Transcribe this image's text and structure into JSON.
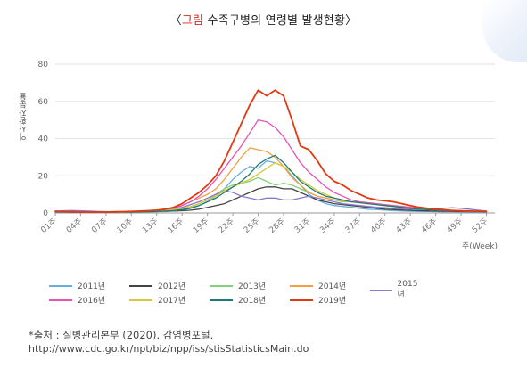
{
  "title": {
    "prefix": "〈",
    "highlight": "그림",
    "text": " 수족구병의 연령별 발생현황〉",
    "highlight_color": "#d8261c"
  },
  "source": {
    "line1": "*출처 : 질병관리본부 (2020). 감염병포털.",
    "line2": "http://www.cdc.go.kr/npt/biz/npp/iss/stisStatisticsMain.do"
  },
  "chart_data": {
    "type": "line",
    "ylabel": "의사환자분율",
    "xlabel": "주(Week)",
    "ylim": [
      0,
      80
    ],
    "yticks": [
      0,
      20,
      40,
      60,
      80
    ],
    "xtick_labels": [
      "01주",
      "04주",
      "07주",
      "10주",
      "13주",
      "16주",
      "19주",
      "22주",
      "25주",
      "28주",
      "31주",
      "34주",
      "37주",
      "40주",
      "43주",
      "46주",
      "49주",
      "52주"
    ],
    "xtick_weeks": [
      1,
      4,
      7,
      10,
      13,
      16,
      19,
      22,
      25,
      28,
      31,
      34,
      37,
      40,
      43,
      46,
      49,
      52
    ],
    "x_weeks": [
      1,
      2,
      3,
      4,
      5,
      6,
      7,
      8,
      9,
      10,
      11,
      12,
      13,
      14,
      15,
      16,
      17,
      18,
      19,
      20,
      21,
      22,
      23,
      24,
      25,
      26,
      27,
      28,
      29,
      30,
      31,
      32,
      33,
      34,
      35,
      36,
      37,
      38,
      39,
      40,
      41,
      42,
      43,
      44,
      45,
      46,
      47,
      48,
      49,
      50,
      51,
      52
    ],
    "grid": "horizontal",
    "legend_position": "bottom",
    "series": [
      {
        "name": "2011년",
        "color": "#6aaede",
        "values": [
          1,
          0.8,
          0.6,
          0.5,
          0.5,
          0.4,
          0.4,
          0.4,
          0.5,
          0.5,
          0.6,
          0.7,
          0.8,
          1,
          1.2,
          1.6,
          2.5,
          4,
          6,
          9,
          13,
          18,
          22,
          25,
          24,
          28,
          27,
          25,
          20,
          15,
          10,
          7,
          5,
          4,
          3.5,
          3,
          2.5,
          2,
          1.8,
          1.5,
          1.2,
          1,
          0.9,
          0.8,
          0.8,
          0.7,
          0.6,
          0.6,
          0.5,
          0.5,
          0.5,
          0.5
        ]
      },
      {
        "name": "2012년",
        "color": "#444444",
        "values": [
          0.8,
          0.6,
          0.5,
          0.5,
          0.4,
          0.4,
          0.4,
          0.4,
          0.4,
          0.5,
          0.5,
          0.6,
          0.7,
          0.8,
          1,
          1.2,
          1.5,
          2,
          3,
          4,
          5,
          7,
          9,
          11,
          13,
          14,
          14,
          13,
          13,
          11,
          9,
          7,
          6,
          5,
          4.5,
          4,
          3.5,
          3,
          2.5,
          2,
          1.8,
          1.6,
          1.4,
          1.2,
          1.1,
          1,
          0.9,
          0.8,
          0.8,
          0.7,
          0.7,
          0.6
        ]
      },
      {
        "name": "2013년",
        "color": "#7fd17a",
        "values": [
          0.6,
          0.5,
          0.5,
          0.4,
          0.4,
          0.4,
          0.4,
          0.4,
          0.4,
          0.5,
          0.5,
          0.6,
          0.7,
          0.9,
          1.2,
          1.8,
          3,
          5,
          7,
          10,
          13,
          15,
          16,
          17,
          19,
          17,
          15,
          16,
          15,
          13,
          11,
          9,
          8,
          7,
          6,
          6,
          6,
          5.5,
          5,
          4,
          3.5,
          3,
          2.5,
          2,
          1.8,
          1.5,
          1.2,
          1,
          1,
          0.8,
          0.8,
          0.7
        ]
      },
      {
        "name": "2014년",
        "color": "#f5a03c",
        "values": [
          0.5,
          0.5,
          0.4,
          0.4,
          0.4,
          0.4,
          0.4,
          0.4,
          0.5,
          0.6,
          0.8,
          1,
          1.3,
          1.8,
          2.5,
          4,
          6,
          8,
          10,
          13,
          18,
          24,
          30,
          35,
          34,
          33,
          30,
          25,
          19,
          15,
          11,
          9,
          8,
          7,
          6.5,
          6,
          5.5,
          5,
          4.5,
          4,
          3.5,
          3,
          2.5,
          2.2,
          2,
          1.8,
          1.6,
          1.4,
          1.2,
          1,
          1,
          0.9
        ]
      },
      {
        "name": "2015년",
        "color": "#8a78cc",
        "values": [
          1,
          1.2,
          1.3,
          1.2,
          1,
          0.8,
          0.7,
          0.6,
          0.6,
          0.6,
          0.7,
          0.8,
          1,
          1.3,
          2,
          3,
          4.5,
          6,
          8,
          10,
          12,
          11,
          9,
          8,
          7,
          8,
          8,
          7,
          7,
          8,
          9,
          8,
          7,
          6,
          5,
          4.5,
          4,
          3.5,
          3,
          2.8,
          2.5,
          2.2,
          2,
          1.8,
          2,
          2.2,
          2.5,
          2.8,
          2.5,
          2,
          1.5,
          1
        ]
      },
      {
        "name": "2016년",
        "color": "#e652b8",
        "values": [
          0.6,
          0.5,
          0.5,
          0.4,
          0.4,
          0.4,
          0.4,
          0.4,
          0.5,
          0.6,
          0.8,
          1,
          1.3,
          1.8,
          2.5,
          4,
          6,
          9,
          13,
          18,
          24,
          30,
          36,
          43,
          50,
          49,
          46,
          41,
          34,
          27,
          22,
          18,
          14,
          11,
          9,
          7,
          6,
          5.5,
          5,
          4.5,
          4,
          3.5,
          3,
          2.5,
          2,
          1.8,
          1.5,
          1.3,
          1.2,
          1,
          0.9,
          0.8
        ]
      },
      {
        "name": "2017년",
        "color": "#d9c83a",
        "values": [
          0.8,
          0.7,
          0.6,
          0.5,
          0.5,
          0.4,
          0.4,
          0.4,
          0.5,
          0.6,
          0.7,
          0.8,
          1,
          1.3,
          1.8,
          2.5,
          3.5,
          5,
          7,
          9,
          12,
          14,
          16,
          18,
          21,
          24,
          27,
          25,
          22,
          18,
          15,
          12,
          10,
          8,
          7,
          6,
          5.5,
          5,
          4.5,
          4,
          3.5,
          3,
          2.5,
          2,
          1.8,
          1.6,
          1.4,
          1.2,
          1.1,
          1,
          0.9,
          0.8
        ]
      },
      {
        "name": "2018년",
        "color": "#1e7a7a",
        "values": [
          0.5,
          0.5,
          0.4,
          0.4,
          0.4,
          0.4,
          0.4,
          0.4,
          0.5,
          0.5,
          0.6,
          0.7,
          0.8,
          1,
          1.3,
          1.8,
          2.5,
          4,
          6,
          8,
          11,
          14,
          17,
          21,
          26,
          29,
          31,
          27,
          22,
          17,
          14,
          11,
          9,
          8,
          7,
          6,
          5.5,
          5,
          4.5,
          4,
          3.5,
          3,
          2.5,
          2,
          1.8,
          1.5,
          1.3,
          1.1,
          1,
          0.9,
          0.8,
          0.7
        ]
      },
      {
        "name": "2019년",
        "color": "#e03a10",
        "values": [
          0.8,
          0.7,
          0.6,
          0.5,
          0.5,
          0.5,
          0.5,
          0.6,
          0.7,
          0.8,
          1,
          1.2,
          1.5,
          2,
          3,
          5,
          8,
          11,
          15,
          20,
          28,
          38,
          48,
          58,
          66,
          63,
          66,
          63,
          50,
          36,
          34,
          28,
          21,
          17,
          15,
          12,
          10,
          8,
          7,
          6.5,
          6,
          5,
          4,
          3,
          2.5,
          2,
          1.6,
          1.3,
          1.1,
          1,
          0.9,
          0.8
        ]
      }
    ]
  }
}
